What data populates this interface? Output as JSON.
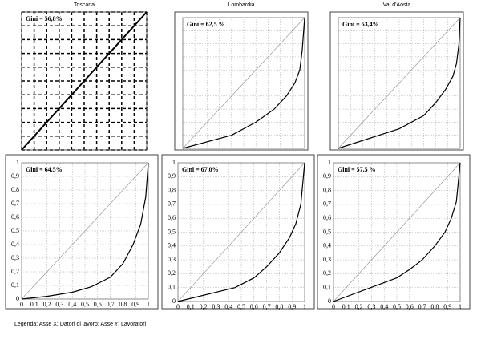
{
  "chart_data": [
    {
      "type": "line",
      "title": "Toscana",
      "annotation": "Gini = 56,8%",
      "x": [
        0,
        0.5,
        1
      ],
      "values": [
        0,
        0.5,
        1
      ],
      "color": "#000000",
      "xlim": [
        0,
        1
      ],
      "ylim": [
        0,
        1
      ],
      "grid": true,
      "grid_style": "dashed"
    },
    {
      "type": "line",
      "title": "Lombardia",
      "annotation": "Gini = 62,5 %",
      "x": [
        0,
        0.4,
        0.6,
        0.75,
        0.85,
        0.92,
        0.96,
        0.98,
        1
      ],
      "values": [
        0,
        0.1,
        0.2,
        0.3,
        0.4,
        0.5,
        0.6,
        0.75,
        1
      ],
      "color": "#000000",
      "xlim": [
        0,
        1
      ],
      "ylim": [
        0,
        1
      ],
      "grid": true,
      "grid_style": "dotted"
    },
    {
      "type": "line",
      "title": "Val d'Aosta",
      "annotation": "Gini = 63,4%",
      "x": [
        0,
        0.5,
        0.7,
        0.8,
        0.88,
        0.94,
        0.97,
        0.99,
        1
      ],
      "values": [
        0,
        0.15,
        0.25,
        0.35,
        0.45,
        0.55,
        0.65,
        0.8,
        1
      ],
      "color": "#000000",
      "xlim": [
        0,
        1
      ],
      "ylim": [
        0,
        1
      ],
      "grid": true,
      "grid_style": "dotted"
    },
    {
      "type": "line",
      "annotation": "Gini = 64,5%",
      "x": [
        0,
        0.2,
        0.4,
        0.55,
        0.7,
        0.8,
        0.88,
        0.94,
        0.98,
        1
      ],
      "values": [
        0,
        0.02,
        0.05,
        0.09,
        0.16,
        0.26,
        0.4,
        0.55,
        0.75,
        1
      ],
      "color": "#000000",
      "xlim": [
        0,
        1
      ],
      "ylim": [
        0,
        1
      ],
      "grid": true,
      "grid_style": "dotted",
      "xticks": [
        0,
        {
          "value": 0.1,
          "label": "0,1"
        },
        {
          "value": 0.2,
          "label": "0,2"
        },
        {
          "value": 0.3,
          "label": "0,3"
        },
        {
          "value": 0.4,
          "label": "0,4"
        },
        {
          "value": 0.5,
          "label": "0,5"
        },
        {
          "value": 0.6,
          "label": "0,6"
        },
        {
          "value": 0.7,
          "label": "0,7"
        },
        {
          "value": 0.8,
          "label": "0,8"
        },
        {
          "value": 0.9,
          "label": "0,9"
        },
        1
      ],
      "yticks": [
        0,
        {
          "value": 0.1,
          "label": "0,1"
        },
        {
          "value": 0.2,
          "label": "0,2"
        },
        {
          "value": 0.3,
          "label": "0,3"
        },
        {
          "value": 0.4,
          "label": "0,4"
        },
        {
          "value": 0.5,
          "label": "0,5"
        },
        {
          "value": 0.6,
          "label": "0,6"
        },
        {
          "value": 0.7,
          "label": "0,7"
        },
        {
          "value": 0.8,
          "label": "0,8"
        },
        {
          "value": 0.9,
          "label": "0,9"
        },
        1
      ]
    },
    {
      "type": "line",
      "annotation": "Gini = 67,0%",
      "x": [
        0,
        0.45,
        0.6,
        0.7,
        0.8,
        0.88,
        0.93,
        0.97,
        1
      ],
      "values": [
        0,
        0.1,
        0.17,
        0.25,
        0.35,
        0.46,
        0.56,
        0.7,
        1
      ],
      "color": "#000000",
      "xlim": [
        0,
        1
      ],
      "ylim": [
        0,
        1
      ],
      "grid": true,
      "grid_style": "dotted",
      "xticks": [
        0,
        {
          "value": 0.1,
          "label": "0,1"
        },
        {
          "value": 0.2,
          "label": "0,2"
        },
        {
          "value": 0.3,
          "label": "0,3"
        },
        {
          "value": 0.4,
          "label": "0,4"
        },
        {
          "value": 0.5,
          "label": "0,5"
        },
        {
          "value": 0.6,
          "label": "0,6"
        },
        {
          "value": 0.7,
          "label": "0,7"
        },
        {
          "value": 0.8,
          "label": "0,8"
        },
        {
          "value": 0.9,
          "label": "0,9"
        },
        1
      ],
      "yticks": [
        0,
        {
          "value": 0.1,
          "label": "0,1"
        },
        {
          "value": 0.2,
          "label": "0,2"
        },
        {
          "value": 0.3,
          "label": "0,3"
        },
        {
          "value": 0.4,
          "label": "0,4"
        },
        {
          "value": 0.5,
          "label": "0,5"
        },
        {
          "value": 0.6,
          "label": "0,6"
        },
        {
          "value": 0.7,
          "label": "0,7"
        },
        {
          "value": 0.8,
          "label": "0,8"
        },
        {
          "value": 0.9,
          "label": "0,9"
        },
        1
      ]
    },
    {
      "type": "line",
      "annotation": "Gini = 57,5 %",
      "x": [
        0,
        0.5,
        0.6,
        0.7,
        0.8,
        0.88,
        0.93,
        0.97,
        1
      ],
      "values": [
        0,
        0.17,
        0.23,
        0.3,
        0.4,
        0.5,
        0.6,
        0.72,
        1
      ],
      "color": "#000000",
      "xlim": [
        0,
        1
      ],
      "ylim": [
        0,
        1
      ],
      "grid": true,
      "grid_style": "dotted",
      "xticks": [
        0,
        {
          "value": 0.1,
          "label": "0,1"
        },
        {
          "value": 0.2,
          "label": "0,2"
        },
        {
          "value": 0.3,
          "label": "0,3"
        },
        {
          "value": 0.4,
          "label": "0,4"
        },
        {
          "value": 0.5,
          "label": "0,5"
        },
        {
          "value": 0.6,
          "label": "0,6"
        },
        {
          "value": 0.7,
          "label": "0,7"
        },
        {
          "value": 0.8,
          "label": "0,8"
        },
        {
          "value": 0.9,
          "label": "0,9"
        },
        1
      ],
      "yticks": [
        0,
        {
          "value": 0.1,
          "label": "0,1"
        },
        {
          "value": 0.2,
          "label": "0,2"
        },
        {
          "value": 0.3,
          "label": "0,3"
        },
        {
          "value": 0.4,
          "label": "0,4"
        },
        {
          "value": 0.5,
          "label": "0,5"
        },
        {
          "value": 0.6,
          "label": "0,6"
        },
        {
          "value": 0.7,
          "label": "0,7"
        },
        {
          "value": 0.8,
          "label": "0,8"
        },
        {
          "value": 0.9,
          "label": "0,9"
        },
        1
      ]
    }
  ],
  "note": "Legenda: Asse X: Datori di lavoro; Asse Y: Lavoratori"
}
